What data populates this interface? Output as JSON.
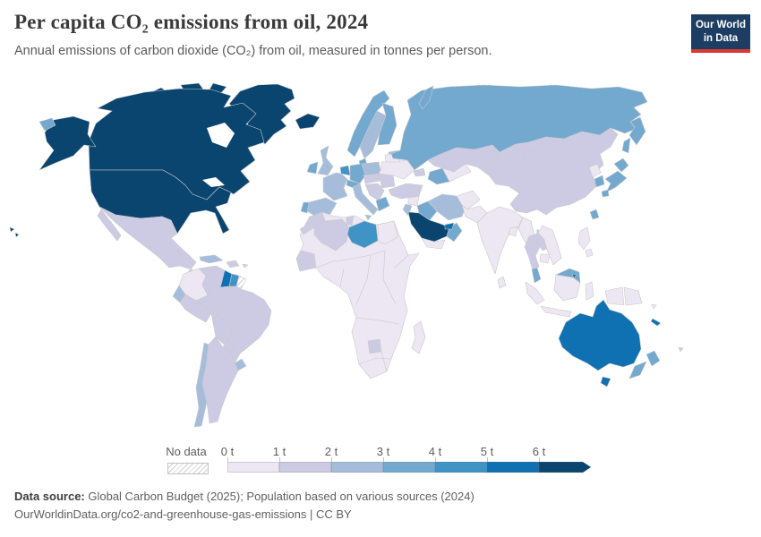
{
  "header": {
    "title": "Per capita CO₂ emissions from oil, 2024",
    "subtitle": "Annual emissions of carbon dioxide (CO₂) from oil, measured in tonnes per person.",
    "logo": {
      "line1": "Our World",
      "line2": "in Data",
      "bg": "#1d3d63",
      "accent": "#d93a34"
    }
  },
  "legend": {
    "no_data_label": "No data"
  },
  "footer": {
    "source_label": "Data source:",
    "source_text": " Global Carbon Budget (2025); Population based on various sources (2024)",
    "url_text": "OurWorldinData.org/co2-and-greenhouse-gas-emissions",
    "separator": " | ",
    "license": "CC BY"
  },
  "chart_data": {
    "type": "choropleth_map",
    "title": "Per capita CO₂ emissions from oil, 2024",
    "unit": "tonnes of CO₂ per person",
    "year": "2024",
    "bin_labels": [
      "0 t",
      "1 t",
      "2 t",
      "3 t",
      "4 t",
      "5 t",
      "6 t"
    ],
    "bin_ranges": [
      "0–1 t",
      "1–2 t",
      "2–3 t",
      "3–4 t",
      "4–5 t",
      "5–6 t",
      "6+ t"
    ],
    "bin_colors": [
      "#ece7f2",
      "#cdcbe3",
      "#a5bddb",
      "#74a9cf",
      "#3f93c5",
      "#0f70b2",
      "#0a4570"
    ],
    "no_data_pattern": "diagonal-hatch",
    "legend_position": "bottom",
    "regions": {
      "greenland": 6,
      "canada": 6,
      "canada-arctic-islands": 6,
      "alaska-us": 6,
      "united-states": 6,
      "hawaii-us": 6,
      "chukotka-russia": 3,
      "novaya-zemlya-russia": 3,
      "kamchatka-russia": 3,
      "sakhalin-russia": 3,
      "mexico": 1,
      "guatemala": 1,
      "central-america": 0,
      "cuba": 2,
      "hispaniola": 1,
      "puerto-rico": 1,
      "colombia": 0,
      "venezuela": 1,
      "guyana": 5,
      "suriname": 4,
      "french-guiana": "no-data",
      "ecuador": 2,
      "peru": 1,
      "brazil": 1,
      "bolivia": 1,
      "paraguay": 1,
      "uruguay": 2,
      "chile": 2,
      "argentina": 1,
      "iceland": 6,
      "norway": 3,
      "sweden": 2,
      "finland": 3,
      "denmark": 3,
      "baltic-states": 2,
      "united-kingdom": 2,
      "ireland": 3,
      "benelux": 4,
      "germany": 3,
      "poland": 2,
      "france": 2,
      "spain": 2,
      "portugal": 3,
      "italy": 2,
      "sicily-italy": 2,
      "switzerland-austria": 3,
      "czechia-slovakia-hungary": 1,
      "balkans": 1,
      "greece": 3,
      "romania-bulgaria": 1,
      "ukraine": 0,
      "belarus": 0,
      "russia": 3,
      "kazakhstan": 1,
      "uzbekistan": 0,
      "turkmenistan": 3,
      "caucasus": 1,
      "turkey": 1,
      "cyprus": 4,
      "syria": 0,
      "jordan-israel": 2,
      "iraq": 3,
      "iran": 2,
      "saudi-arabia": 6,
      "yemen": 0,
      "oman": 3,
      "united-arab-emirates": 5,
      "afghanistan": 0,
      "pakistan": 0,
      "india": 0,
      "sri-lanka": 0,
      "bangladesh": 0,
      "myanmar": 0,
      "thailand": 1,
      "laos": 1,
      "vietnam": 0,
      "cambodia": 0,
      "malaysia-peninsula": 3,
      "malaysia-borneo": 3,
      "brunei": 5,
      "china": 1,
      "mongolia": 1,
      "north-korea": 0,
      "south-korea": 3,
      "japan": 3,
      "taiwan": 3,
      "philippines": 0,
      "sumatra-indonesia": 0,
      "java-indonesia": 0,
      "borneo-indonesia": 0,
      "sulawesi-indonesia": 0,
      "west-papua-indonesia": 0,
      "papua-new-guinea": 0,
      "solomon-islands": 0,
      "new-caledonia": 5,
      "fiji": 1,
      "australia": 5,
      "tasmania-australia": 5,
      "new-zealand": 3,
      "africa": 0,
      "morocco": 1,
      "mauritania": 1,
      "algeria": 1,
      "tunisia": 1,
      "libya": 4,
      "egypt": 0,
      "botswana": 1,
      "madagascar": 0
    }
  }
}
